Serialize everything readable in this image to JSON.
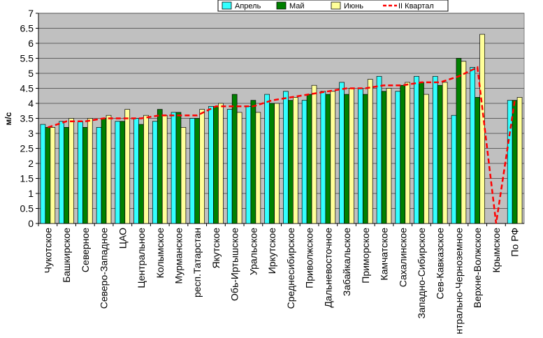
{
  "chart_data": {
    "type": "bar",
    "title": "",
    "xlabel": "",
    "ylabel": "м/с",
    "ylim": [
      0,
      7
    ],
    "ytick_step": 0.5,
    "grid": true,
    "legend_position": "top",
    "categories": [
      "Чукотское",
      "Башкирское",
      "Северное",
      "Северо-Западное",
      "ЦАО",
      "Центральное",
      "Колымское",
      "Мурманское",
      "респ.Татарстан",
      "Якутское",
      "Обь-Иртышское",
      "Уральское",
      "Иркутское",
      "Среднесибирское",
      "Приволжское",
      "Дальневосточное",
      "Забайкальское",
      "Приморское",
      "Камчатское",
      "Сахалинское",
      "Западно-Сибирское",
      "Сев-Кавказское",
      "Центрально-Черноземное",
      "Верхне-Волжское",
      "Крымское",
      "По РФ"
    ],
    "series": [
      {
        "name": "Апрель",
        "kind": "bar",
        "color": "#33ffff",
        "values": [
          3.3,
          3.4,
          3.4,
          3.2,
          3.4,
          3.5,
          3.4,
          3.7,
          3.5,
          3.9,
          3.8,
          3.9,
          4.3,
          4.4,
          4.1,
          4.4,
          4.7,
          4.5,
          4.9,
          4.4,
          4.9,
          4.9,
          3.6,
          5.2,
          0,
          4.1
        ]
      },
      {
        "name": "Май",
        "kind": "bar",
        "color": "#008000",
        "values": [
          3.2,
          3.2,
          3.2,
          3.5,
          3.4,
          3.3,
          3.8,
          3.7,
          3.5,
          3.9,
          4.3,
          4.1,
          4.0,
          4.1,
          4.3,
          4.3,
          4.3,
          4.3,
          4.4,
          4.6,
          4.7,
          4.6,
          5.5,
          4.2,
          0,
          4.1
        ]
      },
      {
        "name": "Июнь",
        "kind": "bar",
        "color": "#ffff99",
        "values": [
          3.2,
          3.5,
          3.5,
          3.6,
          3.8,
          3.6,
          3.6,
          3.2,
          3.8,
          4.0,
          3.7,
          3.7,
          4.0,
          4.2,
          4.6,
          4.4,
          4.5,
          4.8,
          4.5,
          4.7,
          4.3,
          4.7,
          5.4,
          6.3,
          0,
          4.2
        ]
      },
      {
        "name": "II Квартал",
        "kind": "line",
        "color": "#ff0000",
        "values": [
          3.2,
          3.4,
          3.4,
          3.5,
          3.5,
          3.5,
          3.6,
          3.6,
          3.6,
          3.9,
          3.9,
          3.9,
          4.1,
          4.2,
          4.3,
          4.4,
          4.5,
          4.5,
          4.6,
          4.6,
          4.7,
          4.7,
          4.9,
          5.2,
          0,
          4.1
        ]
      }
    ]
  }
}
